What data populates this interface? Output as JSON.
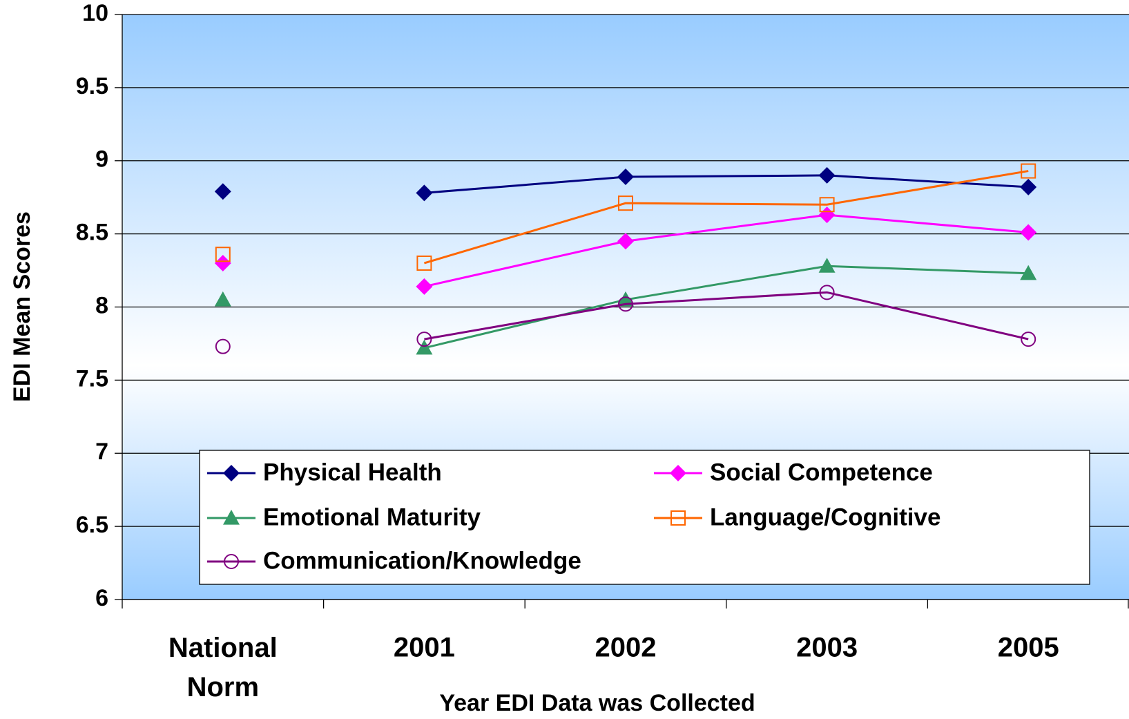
{
  "chart_data": {
    "type": "line",
    "x_label": "Year EDI Data was Collected",
    "y_label": "EDI Mean Scores",
    "categories": [
      "National Norm",
      "2001",
      "2002",
      "2003",
      "2005"
    ],
    "ylim": [
      6,
      10
    ],
    "yticks": [
      6,
      6.5,
      7,
      7.5,
      8,
      8.5,
      9,
      9.5,
      10
    ],
    "grid": true,
    "legend": "bottom",
    "series": [
      {
        "name": "Physical Health",
        "color": "#000080",
        "marker": "diamond",
        "values": [
          8.79,
          8.78,
          8.89,
          8.9,
          8.82
        ]
      },
      {
        "name": "Social Competence",
        "color": "#ff00ff",
        "marker": "diamond",
        "values": [
          8.3,
          8.14,
          8.45,
          8.63,
          8.51
        ]
      },
      {
        "name": "Emotional Maturity",
        "color": "#339966",
        "marker": "triangle",
        "values": [
          8.05,
          7.72,
          8.05,
          8.28,
          8.23
        ]
      },
      {
        "name": "Language/Cognitive",
        "color": "#ff6600",
        "marker": "square-open",
        "values": [
          8.36,
          8.3,
          8.71,
          8.7,
          8.93
        ]
      },
      {
        "name": "Communication/Knowledge",
        "color": "#800080",
        "marker": "circle-open",
        "values": [
          7.73,
          7.78,
          8.02,
          8.1,
          7.78
        ]
      }
    ]
  }
}
